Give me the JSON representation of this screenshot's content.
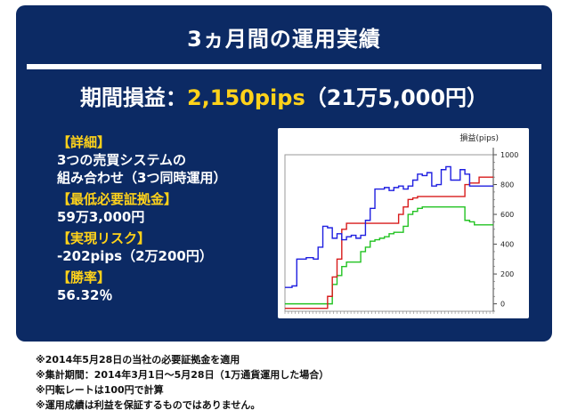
{
  "title": "3ヵ月間の運用実績",
  "headline": {
    "label": "期間損益：",
    "value": "2,150pips",
    "suffix": "（21万5,000円）"
  },
  "details": [
    {
      "label": "【詳細】",
      "lines": [
        "3つの売買システムの",
        "組み合わせ（3つ同時運用）"
      ]
    },
    {
      "label": "【最低必要証拠金】",
      "lines": [
        "59万3,000円"
      ]
    },
    {
      "label": "【実現リスク】",
      "lines": [
        "-202pips（2万200円）"
      ]
    },
    {
      "label": "【勝率】",
      "lines": [
        "56.32％"
      ]
    }
  ],
  "notes": [
    "※2014年5月28日の当社の必要証拠金を適用",
    "※集計期間：2014年3月1日～5月28日（1万通貨運用した場合）",
    "※円転レートは100円で計算",
    "※運用成績は利益を保証するものではありません。"
  ],
  "colors": {
    "panel": "#0c2a64",
    "accent": "#ffd21a",
    "series": [
      "#1f1fe0",
      "#d81b1b",
      "#22c322"
    ]
  },
  "chart_data": {
    "type": "line",
    "ylabel": "損益(pips)",
    "ylim": [
      -50,
      1000
    ],
    "yticks": [
      0,
      200,
      400,
      600,
      800,
      1000
    ],
    "x": [
      0,
      3,
      5,
      7,
      9,
      12,
      14,
      16,
      18,
      20,
      22,
      24,
      26,
      28,
      30,
      32,
      34,
      36,
      38,
      40,
      42,
      44,
      46,
      48,
      50,
      52,
      54,
      56,
      58,
      60,
      62,
      64,
      66,
      68,
      70,
      72,
      74,
      76,
      78,
      80,
      82,
      84,
      86,
      88
    ],
    "series": [
      {
        "values": [
          110,
          120,
          300,
          300,
          310,
          300,
          380,
          520,
          510,
          440,
          470,
          430,
          450,
          460,
          440,
          460,
          560,
          640,
          770,
          770,
          780,
          760,
          780,
          790,
          770,
          790,
          830,
          870,
          860,
          880,
          790,
          800,
          900,
          920,
          830,
          830,
          900,
          870,
          790,
          790,
          790,
          790,
          790,
          790
        ]
      },
      {
        "values": [
          -30,
          -30,
          -30,
          -30,
          -30,
          -30,
          -30,
          -30,
          50,
          180,
          300,
          500,
          540,
          540,
          540,
          540,
          540,
          540,
          540,
          540,
          540,
          540,
          540,
          600,
          650,
          700,
          710,
          720,
          720,
          720,
          720,
          720,
          720,
          720,
          720,
          720,
          720,
          800,
          810,
          810,
          850,
          850,
          850,
          850
        ]
      },
      {
        "values": [
          0,
          0,
          0,
          0,
          0,
          0,
          0,
          0,
          0,
          130,
          190,
          250,
          280,
          280,
          280,
          350,
          380,
          420,
          430,
          440,
          450,
          470,
          480,
          480,
          520,
          600,
          620,
          640,
          650,
          650,
          650,
          650,
          650,
          650,
          650,
          650,
          650,
          560,
          550,
          530,
          530,
          530,
          530,
          530
        ]
      }
    ]
  }
}
